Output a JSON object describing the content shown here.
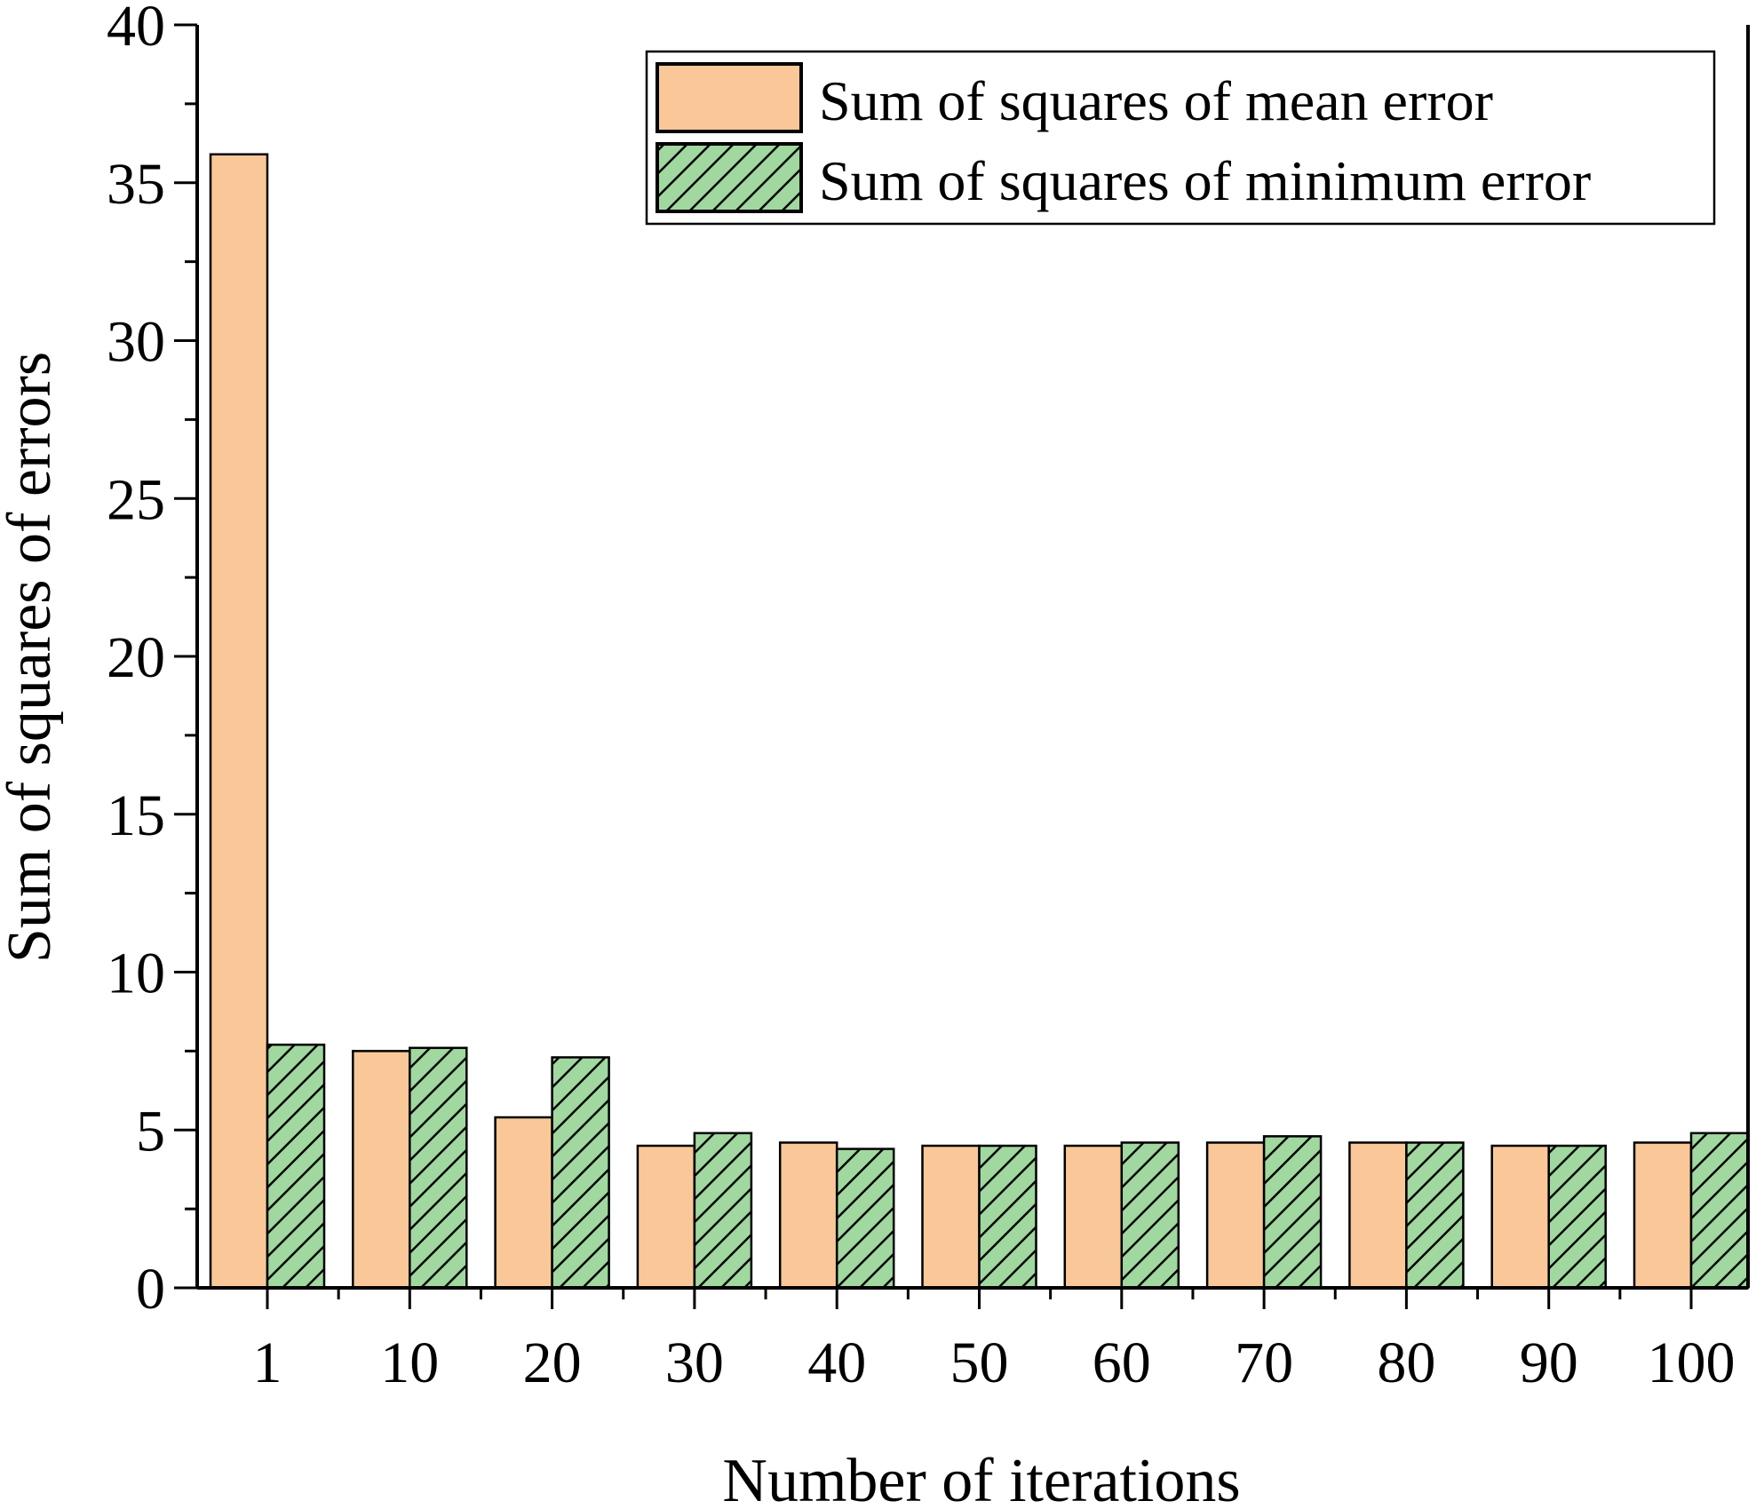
{
  "chart_data": {
    "type": "bar",
    "xlabel": "Number of iterations",
    "ylabel": "Sum of squares of errors",
    "categories": [
      "1",
      "10",
      "20",
      "30",
      "40",
      "50",
      "60",
      "70",
      "80",
      "90",
      "100"
    ],
    "ylim": [
      0,
      40
    ],
    "yticks": [
      "0",
      "5",
      "10",
      "15",
      "20",
      "25",
      "30",
      "35",
      "40"
    ],
    "legend_position": "top-right",
    "series": [
      {
        "name": "Sum of squares of mean error",
        "color": "#fac898",
        "hatch": "none",
        "values": [
          35.9,
          7.5,
          5.4,
          4.5,
          4.6,
          4.5,
          4.5,
          4.6,
          4.6,
          4.5,
          4.6
        ]
      },
      {
        "name": "Sum of squares of minimum error",
        "color": "#a0d8a0",
        "hatch": "diagonal",
        "values": [
          7.7,
          7.6,
          7.3,
          4.9,
          4.4,
          4.5,
          4.6,
          4.8,
          4.6,
          4.5,
          4.9
        ]
      }
    ]
  }
}
